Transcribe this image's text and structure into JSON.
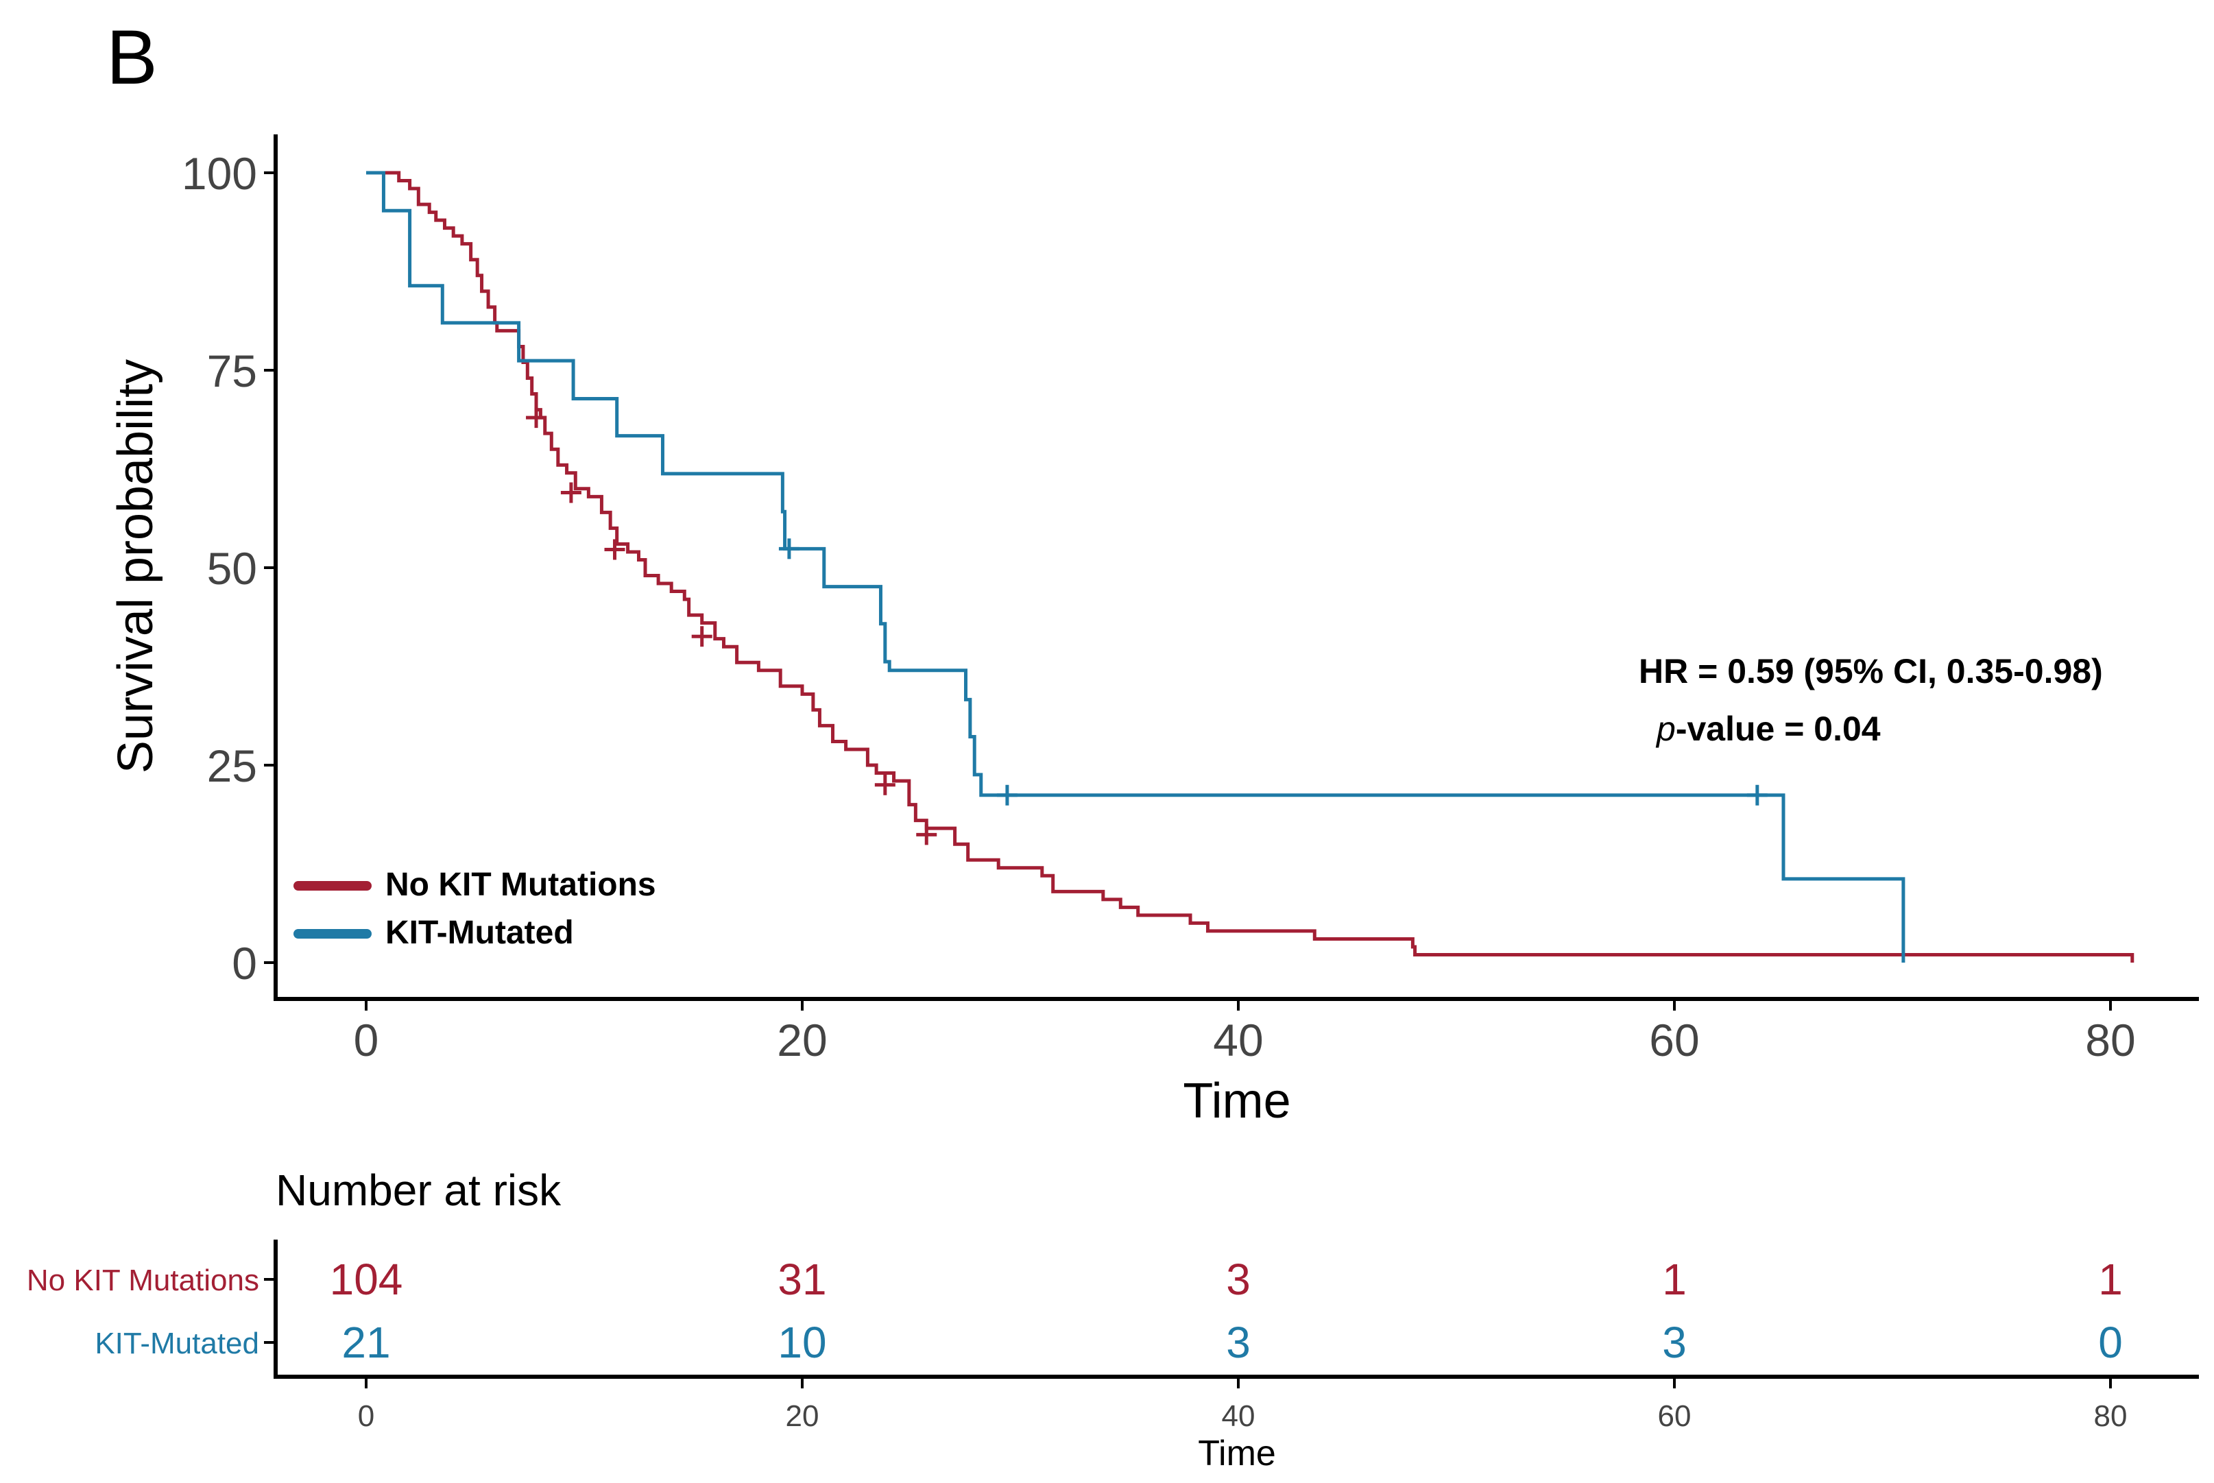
{
  "panel_label": "B",
  "chart_data": {
    "type": "line",
    "subtype": "kaplan-meier",
    "title": "",
    "xlabel": "Time",
    "ylabel": "Survival probability",
    "xlim": [
      0,
      80
    ],
    "ylim": [
      0,
      100
    ],
    "x_ticks": [
      0,
      20,
      40,
      60,
      80
    ],
    "y_ticks": [
      0,
      25,
      50,
      75,
      100
    ],
    "grid": false,
    "legend_position": "bottom-left",
    "annotation": {
      "hr_text": "HR  = 0.59 (95% CI, 0.35-0.98)",
      "p_label": "p",
      "p_rest": "-value = 0.04"
    },
    "series": [
      {
        "name": "No KIT Mutations",
        "color": "#A31F34",
        "steps": [
          [
            0.8,
            100
          ],
          [
            1.5,
            99
          ],
          [
            2,
            98
          ],
          [
            2.4,
            96
          ],
          [
            2.9,
            95
          ],
          [
            3.2,
            94
          ],
          [
            3.6,
            93
          ],
          [
            4,
            92
          ],
          [
            4.4,
            91
          ],
          [
            4.8,
            89
          ],
          [
            5.1,
            87
          ],
          [
            5.3,
            85
          ],
          [
            5.6,
            83
          ],
          [
            5.9,
            81
          ],
          [
            6,
            80
          ],
          [
            7,
            78
          ],
          [
            7.2,
            76
          ],
          [
            7.4,
            74
          ],
          [
            7.6,
            72
          ],
          [
            7.8,
            70
          ],
          [
            8,
            69
          ],
          [
            8.2,
            67
          ],
          [
            8.5,
            65
          ],
          [
            8.8,
            63
          ],
          [
            9.2,
            62
          ],
          [
            9.6,
            60
          ],
          [
            10.2,
            59
          ],
          [
            10.8,
            57
          ],
          [
            11.2,
            55
          ],
          [
            11.5,
            53
          ],
          [
            12,
            52
          ],
          [
            12.5,
            51
          ],
          [
            12.8,
            49
          ],
          [
            13.4,
            48
          ],
          [
            14,
            47
          ],
          [
            14.6,
            46
          ],
          [
            14.8,
            44
          ],
          [
            15.4,
            43
          ],
          [
            16,
            41
          ],
          [
            16.4,
            40
          ],
          [
            17,
            38
          ],
          [
            18,
            37
          ],
          [
            19,
            35
          ],
          [
            20,
            34
          ],
          [
            20.5,
            32
          ],
          [
            20.8,
            30
          ],
          [
            21.4,
            28
          ],
          [
            22,
            27
          ],
          [
            23,
            25
          ],
          [
            23.4,
            24
          ],
          [
            24.2,
            23
          ],
          [
            24.9,
            20
          ],
          [
            25.2,
            18
          ],
          [
            25.7,
            17
          ],
          [
            27,
            15
          ],
          [
            27.6,
            13
          ],
          [
            29,
            12
          ],
          [
            31,
            11
          ],
          [
            31.5,
            9
          ],
          [
            33.8,
            8
          ],
          [
            34.6,
            7
          ],
          [
            35.4,
            6
          ],
          [
            37.8,
            5
          ],
          [
            38.6,
            4
          ],
          [
            43.5,
            3
          ],
          [
            48,
            2
          ],
          [
            48.1,
            1
          ],
          [
            81,
            0
          ]
        ],
        "censors": [
          [
            7.8,
            69
          ],
          [
            9.4,
            59.5
          ],
          [
            11.4,
            52.3
          ],
          [
            15.4,
            41.3
          ],
          [
            23.8,
            22.5
          ],
          [
            25.7,
            16.2
          ]
        ]
      },
      {
        "name": "KIT-Mutated",
        "color": "#1F7AA6",
        "steps": [
          [
            0,
            100
          ],
          [
            0.8,
            95.2
          ],
          [
            2,
            85.7
          ],
          [
            3.5,
            81
          ],
          [
            7,
            76.2
          ],
          [
            9.5,
            71.4
          ],
          [
            11.5,
            66.7
          ],
          [
            13.6,
            61.9
          ],
          [
            19.1,
            57.1
          ],
          [
            19.2,
            52.4
          ],
          [
            21,
            47.6
          ],
          [
            23.6,
            42.9
          ],
          [
            23.8,
            38.1
          ],
          [
            24,
            37
          ],
          [
            27.5,
            33.3
          ],
          [
            27.7,
            28.6
          ],
          [
            27.9,
            23.8
          ],
          [
            28.2,
            21.2
          ],
          [
            64.2,
            21.2
          ],
          [
            64.4,
            21.2
          ],
          [
            65,
            10.6
          ],
          [
            70.5,
            0
          ]
        ],
        "censors": [
          [
            19.4,
            52.4
          ],
          [
            29.4,
            21.2
          ],
          [
            63.8,
            21.2
          ]
        ]
      }
    ],
    "risk_table": {
      "title": "Number at risk",
      "xlabel": "Time",
      "times": [
        0,
        20,
        40,
        60,
        80
      ],
      "rows": [
        {
          "label": "No KIT Mutations",
          "color": "#A31F34",
          "values": [
            "104",
            "31",
            "3",
            "1",
            "1"
          ]
        },
        {
          "label": "KIT-Mutated",
          "color": "#1F7AA6",
          "values": [
            "21",
            "10",
            "3",
            "3",
            "0"
          ]
        }
      ]
    }
  }
}
